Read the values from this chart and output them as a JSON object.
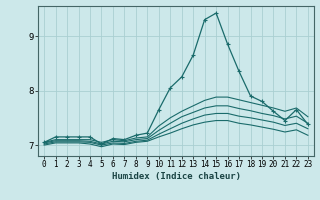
{
  "xlabel": "Humidex (Indice chaleur)",
  "ylabel": "",
  "bg_color": "#cce8ea",
  "grid_color": "#aacfd2",
  "line_color": "#1a6b6b",
  "xlim": [
    -0.5,
    23.5
  ],
  "ylim": [
    6.8,
    9.55
  ],
  "xticks": [
    0,
    1,
    2,
    3,
    4,
    5,
    6,
    7,
    8,
    9,
    10,
    11,
    12,
    13,
    14,
    15,
    16,
    17,
    18,
    19,
    20,
    21,
    22,
    23
  ],
  "yticks": [
    7,
    8,
    9
  ],
  "lines": [
    {
      "x": [
        0,
        1,
        2,
        3,
        4,
        5,
        6,
        7,
        8,
        9,
        10,
        11,
        12,
        13,
        14,
        15,
        16,
        17,
        18,
        19,
        20,
        21,
        22,
        23
      ],
      "y": [
        7.05,
        7.15,
        7.15,
        7.15,
        7.15,
        7.02,
        7.12,
        7.1,
        7.18,
        7.22,
        7.65,
        8.05,
        8.25,
        8.65,
        9.3,
        9.42,
        8.85,
        8.35,
        7.9,
        7.8,
        7.62,
        7.45,
        7.65,
        7.38
      ],
      "marker": true
    },
    {
      "x": [
        0,
        1,
        2,
        3,
        4,
        5,
        6,
        7,
        8,
        9,
        10,
        11,
        12,
        13,
        14,
        15,
        16,
        17,
        18,
        19,
        20,
        21,
        22,
        23
      ],
      "y": [
        7.05,
        7.1,
        7.1,
        7.1,
        7.1,
        7.05,
        7.1,
        7.08,
        7.13,
        7.15,
        7.35,
        7.5,
        7.62,
        7.72,
        7.82,
        7.88,
        7.88,
        7.83,
        7.78,
        7.73,
        7.68,
        7.62,
        7.68,
        7.52
      ],
      "marker": false
    },
    {
      "x": [
        0,
        1,
        2,
        3,
        4,
        5,
        6,
        7,
        8,
        9,
        10,
        11,
        12,
        13,
        14,
        15,
        16,
        17,
        18,
        19,
        20,
        21,
        22,
        23
      ],
      "y": [
        7.04,
        7.08,
        7.08,
        7.08,
        7.07,
        7.02,
        7.07,
        7.06,
        7.1,
        7.12,
        7.27,
        7.4,
        7.52,
        7.6,
        7.68,
        7.72,
        7.72,
        7.67,
        7.63,
        7.58,
        7.54,
        7.48,
        7.53,
        7.4
      ],
      "marker": false
    },
    {
      "x": [
        0,
        1,
        2,
        3,
        4,
        5,
        6,
        7,
        8,
        9,
        10,
        11,
        12,
        13,
        14,
        15,
        16,
        17,
        18,
        19,
        20,
        21,
        22,
        23
      ],
      "y": [
        7.02,
        7.06,
        7.06,
        7.06,
        7.05,
        7.0,
        7.04,
        7.03,
        7.07,
        7.09,
        7.2,
        7.3,
        7.4,
        7.48,
        7.55,
        7.58,
        7.58,
        7.53,
        7.5,
        7.46,
        7.42,
        7.36,
        7.4,
        7.3
      ],
      "marker": false
    },
    {
      "x": [
        0,
        1,
        2,
        3,
        4,
        5,
        6,
        7,
        8,
        9,
        10,
        11,
        12,
        13,
        14,
        15,
        16,
        17,
        18,
        19,
        20,
        21,
        22,
        23
      ],
      "y": [
        7.0,
        7.04,
        7.04,
        7.04,
        7.02,
        6.97,
        7.02,
        7.01,
        7.05,
        7.07,
        7.15,
        7.22,
        7.3,
        7.37,
        7.42,
        7.45,
        7.45,
        7.4,
        7.37,
        7.33,
        7.29,
        7.24,
        7.28,
        7.18
      ],
      "marker": false
    }
  ]
}
